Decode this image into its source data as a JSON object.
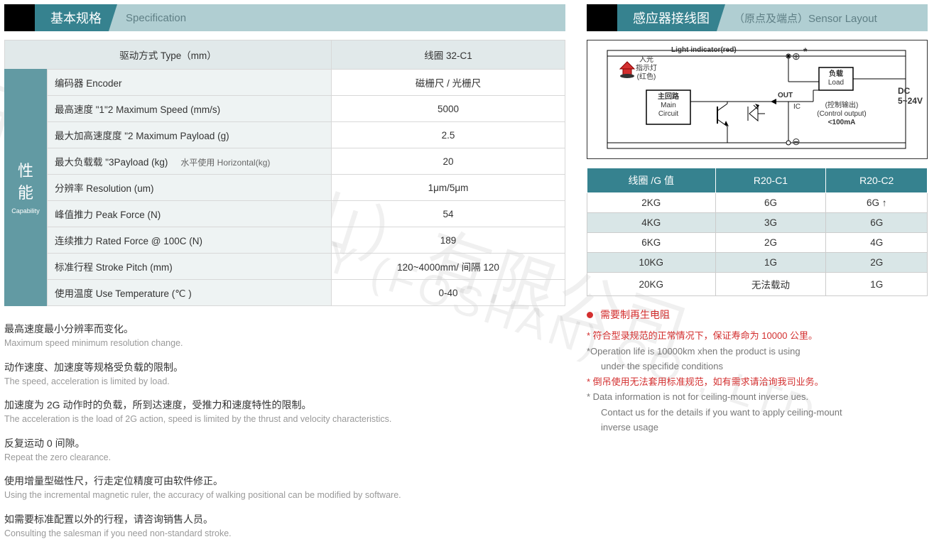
{
  "colors": {
    "header_dark": "#36828f",
    "header_light": "#b0ced2",
    "header_light_text": "#5f7f85",
    "side_bg": "#629aa3",
    "row_head_bg": "#e1e9ea",
    "row_label_bg": "#eef3f3",
    "coil_alt_bg": "#d9e6e7",
    "red": "#d32f2f"
  },
  "left": {
    "header_cn": "基本规格",
    "header_en": "Specification",
    "side_cn": "性能",
    "side_en": "Capability",
    "spec_head_label": "驱动方式 Type（mm）",
    "spec_head_value": "线圈 32-C1",
    "rows": [
      {
        "label": "编码器 Encoder",
        "value": "磁栅尺 / 光栅尺"
      },
      {
        "label": "最高速度 \"1\"2 Maximum Speed (mm/s)",
        "value": "5000"
      },
      {
        "label": "最大加高速度度 \"2 Maximum Payload (g)",
        "value": "2.5"
      },
      {
        "label": "最大负载载 \"3Payload (kg)",
        "sublabel": "水平使用 Horizontal(kg)",
        "value": "20"
      },
      {
        "label": "分辨率 Resolution (um)",
        "value": "1μm/5μm"
      },
      {
        "label": "峰值推力 Peak Force (N)",
        "value": "54"
      },
      {
        "label": "连续推力 Rated Force @ 100C (N)",
        "value": "189"
      },
      {
        "label": "标准行程 Stroke Pitch (mm)",
        "value": "120~4000mm/ 间隔 120"
      },
      {
        "label": "使用温度 Use Temperature (℃ )",
        "value": "0-40"
      }
    ],
    "notes": [
      {
        "cn": "最高速度最小分辨率而变化。",
        "en": "Maximum speed minimum resolution change."
      },
      {
        "cn": "动作速度、加速度等规格受负载的限制。",
        "en": "The speed, acceleration is limited by load."
      },
      {
        "cn": "加速度为 2G 动作时的负载，所到达速度，受推力和速度特性的限制。",
        "en": "The acceleration is the load of 2G action, speed is limited by the thrust and velocity characteristics."
      },
      {
        "cn": "反复运动 0 间隙。",
        "en": "Repeat the zero clearance."
      },
      {
        "cn": "使用增量型磁性尺，行走定位精度可由软件修正。",
        "en": "Using the incremental magnetic ruler, the accuracy of walking positional can be modified by software."
      },
      {
        "cn": "如需要标准配置以外的行程，请咨询销售人员。",
        "en": "Consulting the salesman if you need non-standard stroke."
      }
    ]
  },
  "right": {
    "header_cn": "感应器接线图",
    "header_en": "（原点及端点）Sensor Layout",
    "diagram": {
      "light_ind": "Light indicator(red)",
      "light_cn1": "入光",
      "light_cn2": "指示灯",
      "light_cn3": "(红色)",
      "main_cn": "主回路",
      "main_en1": "Main",
      "main_en2": "Circuit",
      "out": "OUT",
      "ic": "IC",
      "load_cn": "负载",
      "load_en": "Load",
      "ctrl_cn": "(控制输出)",
      "ctrl_en": "(Control output)",
      "ctrl_val": "<100mA",
      "dc": "DC",
      "dc_v": "5~24V",
      "plus": "⊕",
      "minus": "⊖",
      "star": "*"
    },
    "coil_table": {
      "headers": [
        "线圈 /G 值",
        "R20-C1",
        "R20-C2"
      ],
      "rows": [
        {
          "alt": false,
          "cells": [
            "2KG",
            "6G",
            "6G ↑"
          ]
        },
        {
          "alt": true,
          "cells": [
            "4KG",
            "3G",
            "6G"
          ]
        },
        {
          "alt": false,
          "cells": [
            "6KG",
            "2G",
            "4G"
          ]
        },
        {
          "alt": true,
          "cells": [
            "10KG",
            "1G",
            "2G"
          ]
        },
        {
          "alt": false,
          "cells": [
            "20KG",
            "无法载动",
            "1G"
          ]
        }
      ]
    },
    "bullet": "需要制再生电阻",
    "foot_notes": [
      {
        "text": "* 符合型录规范的正常情况下，保证寿命为 10000 公里。",
        "cls": "red"
      },
      {
        "text": "*Operation life is 10000km xhen the product is using",
        "cls": "gray"
      },
      {
        "text": "under the specifide conditions",
        "cls": "gray indent"
      },
      {
        "text": "* 倒吊使用无法套用标准规范，如有需求请洽询我司业务。",
        "cls": "red"
      },
      {
        "text": "* Data information is not for ceiling-mount inverse ues.",
        "cls": "gray"
      },
      {
        "text": "Contact us for the details if you want to apply ceiling-mount",
        "cls": "gray indent"
      },
      {
        "text": "inverse usage",
        "cls": "gray indent"
      }
    ]
  },
  "watermark": {
    "line1": "子科技（佛山）有限公司",
    "line2": "ECHNOLOGY (FOSHAN) CO., LTD."
  }
}
